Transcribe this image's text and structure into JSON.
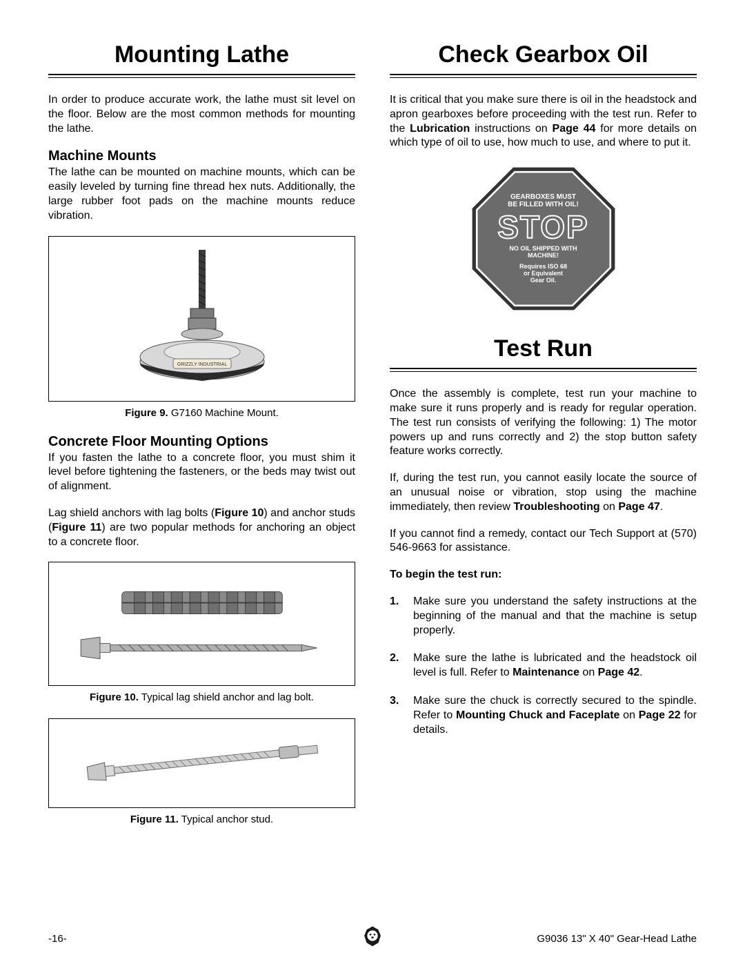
{
  "left": {
    "title": "Mounting Lathe",
    "intro": "In order to produce accurate work, the lathe must sit level on the floor. Below are the most common methods for mounting the lathe.",
    "machine_mounts_h": "Machine Mounts",
    "machine_mounts_p": "The lathe can be mounted on machine mounts, which can be easily leveled by turning fine thread hex nuts. Additionally, the large rubber foot pads on the machine mounts reduce vibration.",
    "fig9_bold": "Figure 9.",
    "fig9_rest": " G7160 Machine Mount.",
    "mount_label": "GRIZZLY INDUSTRIAL",
    "concrete_h": "Concrete Floor Mounting Options",
    "concrete_p1": "If you fasten the lathe to a concrete floor, you must shim it level before tightening the fasteners, or the beds may twist out of alignment.",
    "concrete_p2_a": "Lag shield anchors with lag bolts (",
    "concrete_p2_b": "Figure 10",
    "concrete_p2_c": ") and anchor studs (",
    "concrete_p2_d": "Figure 11",
    "concrete_p2_e": ") are two popular methods for anchoring an object to a concrete floor.",
    "fig10_bold": "Figure 10.",
    "fig10_rest": " Typical lag shield anchor and lag bolt.",
    "fig11_bold": "Figure 11.",
    "fig11_rest": " Typical anchor stud."
  },
  "right": {
    "title1": "Check Gearbox Oil",
    "p1_a": "It is critical that you make sure there is oil in the headstock and apron gearboxes before proceeding with the test run. Refer to the ",
    "p1_b": "Lubrication",
    "p1_c": " instructions on ",
    "p1_d": "Page 44",
    "p1_e": " for more details on which type of oil to use, how much to use, and where to put it.",
    "stop": {
      "top": "GEARBOXES MUST\nBE FILLED WITH OIL!",
      "word": "STOP",
      "mid": "NO OIL SHIPPED WITH\nMACHINE!",
      "bot": "Requires ISO 68\nor Equivalent\nGear Oil.",
      "fill": "#6b6b6b",
      "border": "#333333"
    },
    "title2": "Test Run",
    "p2": "Once the assembly is complete, test run your machine to make sure it runs properly and is ready for regular operation. The test run consists of verifying the following: 1) The motor powers up and runs correctly and 2) the stop button safety feature works correctly.",
    "p3_a": "If, during the test run, you cannot easily locate the source of an unusual noise or vibration, stop using the machine immediately, then review ",
    "p3_b": "Troubleshooting",
    "p3_c": " on ",
    "p3_d": "Page 47",
    "p3_e": ".",
    "p4": "If you cannot find a remedy, contact our Tech Support at (570) 546-9663 for assistance.",
    "begin": "To begin the test run:",
    "steps": [
      "Make sure you understand the safety instructions at the beginning of the manual and that the machine is setup properly.",
      "Make sure the lathe is lubricated and the headstock oil level is full. Refer to |Maintenance| on |Page 42|.",
      "Make sure the chuck is correctly secured to the spindle. Refer to |Mounting Chuck and Faceplate| on |Page 22| for details."
    ]
  },
  "footer": {
    "left": "-16-",
    "right": "G9036 13\" X 40\" Gear-Head Lathe"
  },
  "colors": {
    "text": "#000000",
    "bg": "#ffffff",
    "fig_gray": "#9a9a9a",
    "fig_light": "#cfcfcf",
    "fig_dark": "#4a4a4a"
  }
}
